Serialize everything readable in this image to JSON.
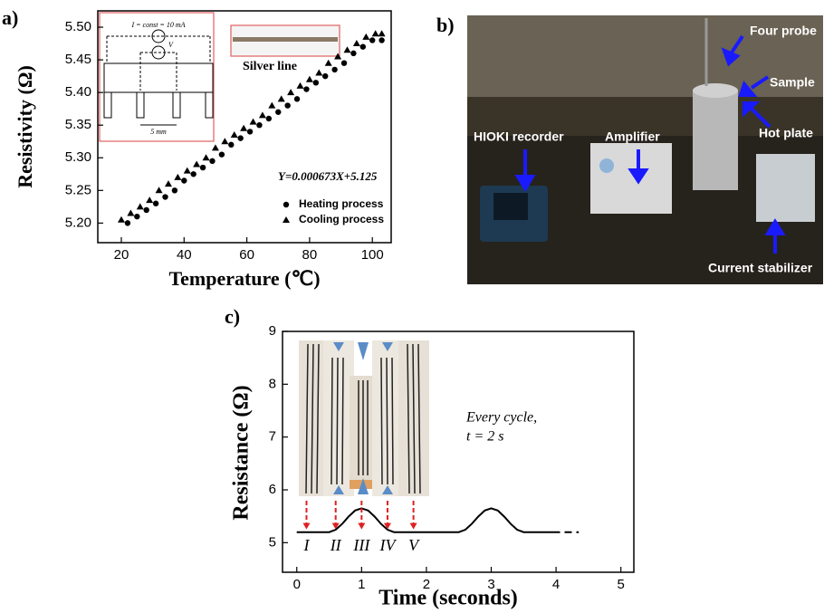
{
  "panel_labels": [
    "a)",
    "b)",
    "c)"
  ],
  "photo": {
    "labels": [
      "Four probe",
      "Sample",
      "HIOKI recorder",
      "Amplifier",
      "Hot plate",
      "Current stabilizer"
    ]
  },
  "chart_data": [
    {
      "type": "scatter",
      "x_label": "Temperature (℃)",
      "y_label": "Resistivity (Ω)",
      "equation": "Y=0.000673X+5.125",
      "inset_labels": [
        "I = const = 10 mA",
        "V",
        "5 mm",
        "Silver line"
      ],
      "xlim": [
        12.5,
        106
      ],
      "ylim": [
        5.17,
        5.525
      ],
      "xticks": [
        20,
        40,
        60,
        80,
        100
      ],
      "yticks": [
        {
          "value": 5.2,
          "label": "5.20"
        },
        5.25,
        {
          "value": 5.3,
          "label": "5.30"
        },
        5.35,
        {
          "value": 5.4,
          "label": "5.40"
        },
        5.45,
        {
          "value": 5.5,
          "label": "5.50"
        }
      ],
      "series": [
        {
          "name": "Heating process",
          "marker": "circle",
          "color": "#000000",
          "x": [
            22,
            25,
            28,
            31,
            34,
            37,
            40,
            43,
            46,
            49,
            52,
            55,
            58,
            61,
            64,
            67,
            70,
            73,
            76,
            79,
            82,
            85,
            88,
            91,
            94,
            97,
            100,
            103
          ],
          "values": [
            5.2,
            5.21,
            5.22,
            5.23,
            5.24,
            5.25,
            5.265,
            5.275,
            5.285,
            5.295,
            5.305,
            5.32,
            5.33,
            5.34,
            5.35,
            5.36,
            5.37,
            5.38,
            5.39,
            5.405,
            5.415,
            5.425,
            5.435,
            5.445,
            5.46,
            5.47,
            5.48,
            5.48
          ]
        },
        {
          "name": "Cooling process",
          "marker": "triangle",
          "color": "#000000",
          "x": [
            20,
            23,
            26,
            29,
            32,
            35,
            38,
            41,
            44,
            47,
            50,
            53,
            56,
            59,
            62,
            65,
            68,
            71,
            74,
            77,
            80,
            83,
            86,
            89,
            92,
            95,
            98,
            101,
            103
          ],
          "values": [
            5.205,
            5.215,
            5.225,
            5.235,
            5.25,
            5.26,
            5.27,
            5.28,
            5.29,
            5.3,
            5.315,
            5.325,
            5.335,
            5.345,
            5.355,
            5.365,
            5.38,
            5.39,
            5.4,
            5.41,
            5.42,
            5.43,
            5.445,
            5.455,
            5.465,
            5.475,
            5.485,
            5.49,
            5.49
          ]
        }
      ]
    },
    {
      "type": "line",
      "x_label": "Time (seconds)",
      "y_label": "Resistance (Ω)",
      "annotations": [
        "Every cycle,",
        "t = 2 s"
      ],
      "stages": [
        {
          "label": "I",
          "x": 0.15
        },
        {
          "label": "II",
          "x": 0.6
        },
        {
          "label": "III",
          "x": 1.0
        },
        {
          "label": "IV",
          "x": 1.4
        },
        {
          "label": "V",
          "x": 1.8
        }
      ],
      "xlim": [
        -0.22,
        5.2
      ],
      "ylim": [
        4.44,
        9
      ],
      "xticks": [
        0,
        1,
        2,
        3,
        4,
        5
      ],
      "yticks": [
        5,
        6,
        7,
        8,
        9
      ],
      "series": [
        {
          "color": "#000000",
          "dashed": false,
          "x": [
            0,
            0.5,
            0.6,
            0.7,
            0.8,
            0.9,
            1.0,
            1.1,
            1.2,
            1.3,
            1.4,
            1.5,
            2.5,
            2.6,
            2.7,
            2.8,
            2.9,
            3.0,
            3.1,
            3.2,
            3.3,
            3.4,
            3.5,
            3.95
          ],
          "values": [
            5.2,
            5.2,
            5.245,
            5.355,
            5.495,
            5.61,
            5.65,
            5.61,
            5.495,
            5.355,
            5.245,
            5.2,
            5.2,
            5.245,
            5.355,
            5.495,
            5.61,
            5.65,
            5.61,
            5.495,
            5.355,
            5.245,
            5.2,
            5.2
          ]
        },
        {
          "color": "#000000",
          "dashed": true,
          "x": [
            3.95,
            4.35
          ],
          "values": [
            5.2,
            5.2
          ]
        }
      ]
    }
  ]
}
